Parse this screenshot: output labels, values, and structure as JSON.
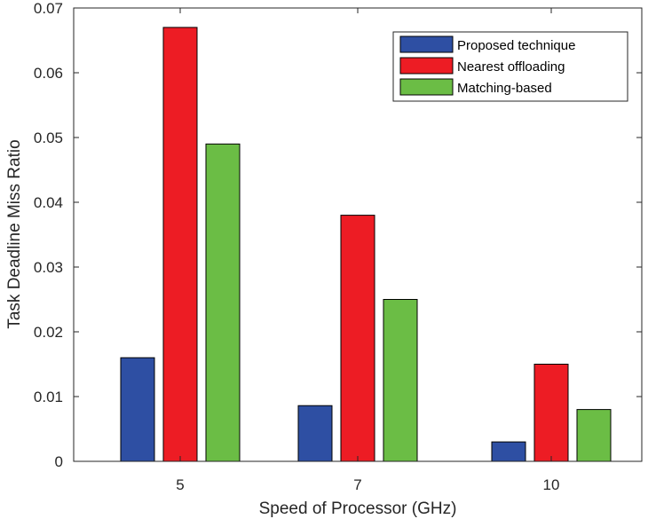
{
  "chart_data": {
    "type": "bar",
    "title": "",
    "xlabel": "Speed of Processor (GHz)",
    "ylabel": "Task Deadline Miss Ratio",
    "categories": [
      "5",
      "7",
      "10"
    ],
    "ylim": [
      0,
      0.07
    ],
    "yticks": [
      "0",
      "0.01",
      "0.02",
      "0.03",
      "0.04",
      "0.05",
      "0.06",
      "0.07"
    ],
    "grid": false,
    "legend_position": "top-right",
    "series": [
      {
        "name": "Proposed technique",
        "color": "#2e4fa3",
        "values": [
          0.016,
          0.0086,
          0.003
        ]
      },
      {
        "name": "Nearest offloading",
        "color": "#ed1c24",
        "values": [
          0.067,
          0.038,
          0.015
        ]
      },
      {
        "name": "Matching-based",
        "color": "#6bbd45",
        "values": [
          0.049,
          0.025,
          0.008
        ]
      }
    ]
  }
}
